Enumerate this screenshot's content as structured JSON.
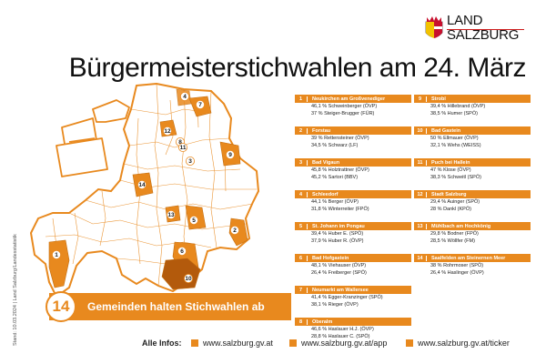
{
  "header": {
    "logo_text": "LAND\nSALZBURG",
    "title": "Bürgermeisterstichwahlen am 24. März"
  },
  "side_note": "Stand: 10.03.2024 | Land Salzburg/Landesstatistik",
  "summary": {
    "count": "14",
    "label": "Gemeinden halten Stichwahlen ab"
  },
  "colors": {
    "accent": "#e8891e",
    "map_fill": "#ffffff",
    "map_border": "#e8891e"
  },
  "results_col1": [
    {
      "num": "1",
      "name": "Neukirchen am Großvenediger",
      "lines": [
        "46,1 % Schweinberger (ÖVP)",
        "37 % Steiger-Brugger (FÜR)"
      ]
    },
    {
      "num": "2",
      "name": "Forstau",
      "lines": [
        "39 % Rettensteiner (ÖVP)",
        "34,5 % Schwarz (LF)"
      ]
    },
    {
      "num": "3",
      "name": "Bad Vigaun",
      "lines": [
        "45,8 % Holztrattner (ÖVP)",
        "45,2 % Sartori (BBV)"
      ]
    },
    {
      "num": "4",
      "name": "Schleedorf",
      "lines": [
        "44,1 % Berger (ÖVP)",
        "31,8 % Winterreiter (FPÖ)"
      ]
    },
    {
      "num": "5",
      "name": "St. Johann im Pongau",
      "lines": [
        "39,4 % Huber E. (SPÖ)",
        "37,9 % Huber R. (ÖVP)"
      ]
    },
    {
      "num": "6",
      "name": "Bad Hofgastein",
      "lines": [
        "48,1 % Viehauser (ÖVP)",
        "26,4 % Freiberger (SPÖ)"
      ]
    },
    {
      "num": "7",
      "name": "Neumarkt am Wallersee",
      "lines": [
        "41,4 % Egger-Kranzinger (SPÖ)",
        "38,1 % Rieger (ÖVP)"
      ]
    },
    {
      "num": "8",
      "name": "Oberalm",
      "lines": [
        "46,6 % Haslauer H.J. (ÖVP)",
        "28,8 % Haslauer C. (SPÖ)"
      ]
    }
  ],
  "results_col2": [
    {
      "num": "9",
      "name": "Strobl",
      "lines": [
        "39,4 % Hillebrand (ÖVP)",
        "38,5 % Humer (SPÖ)"
      ]
    },
    {
      "num": "10",
      "name": "Bad Gastein",
      "lines": [
        "50 % Ellmauer (ÖVP)",
        "32,1 % Wehs (WEISS)"
      ]
    },
    {
      "num": "11",
      "name": "Puch bei Hallein",
      "lines": [
        "47 % Klose (ÖVP)",
        "38,3 % Schweitl (SPÖ)"
      ]
    },
    {
      "num": "12",
      "name": "Stadt Salzburg",
      "lines": [
        "29,4 % Auinger (SPÖ)",
        "28 % Dankl (KPÖ)"
      ]
    },
    {
      "num": "13",
      "name": "Mühlbach am Hochkönig",
      "lines": [
        "29,8 % Bodner (FPÖ)",
        "28,5 % Wöllfer (FM)"
      ]
    },
    {
      "num": "14",
      "name": "Saalfelden am Steinernen Meer",
      "lines": [
        "38 % Rohrmoser (SPÖ)",
        "26,4 % Haslinger (ÖVP)"
      ]
    }
  ],
  "map_labels": [
    "1",
    "2",
    "3",
    "4",
    "5",
    "6",
    "7",
    "8",
    "9",
    "10",
    "11",
    "12",
    "13",
    "14"
  ],
  "footer": {
    "label": "Alle Infos:",
    "links": [
      "www.salzburg.gv.at",
      "www.salzburg.gv.at/app",
      "www.salzburg.gv.at/ticker"
    ]
  }
}
